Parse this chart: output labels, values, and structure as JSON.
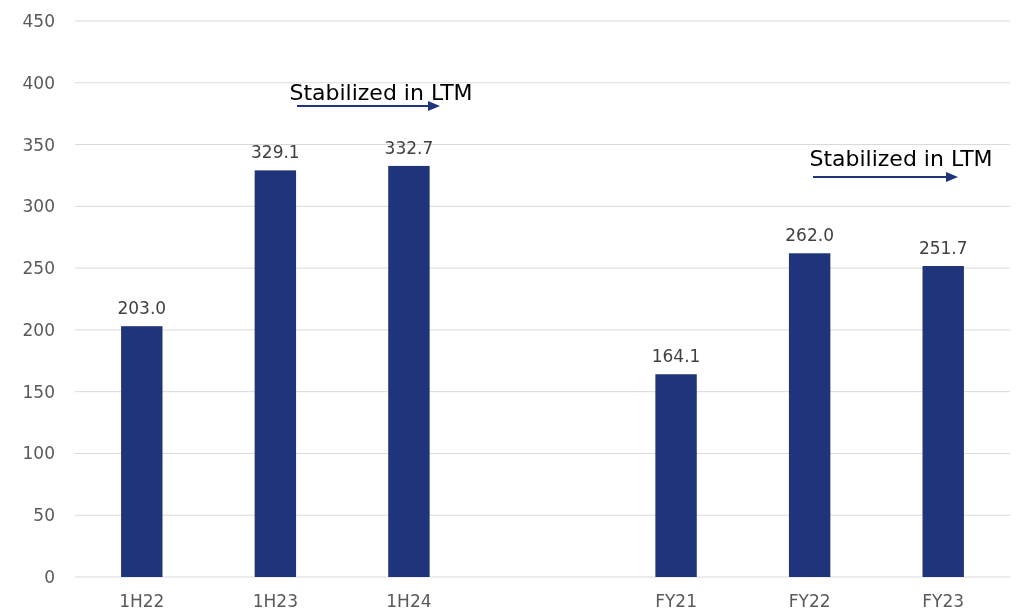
{
  "chart_data": {
    "type": "bar",
    "categories": [
      "1H22",
      "1H23",
      "1H24",
      null,
      "FY21",
      "FY22",
      "FY23"
    ],
    "values": [
      203.0,
      329.1,
      332.7,
      null,
      164.1,
      262.0,
      251.7
    ],
    "value_labels": [
      "203.0",
      "329.1",
      "332.7",
      null,
      "164.1",
      "262.0",
      "251.7"
    ],
    "color": "#1f347a",
    "ylim": [
      0,
      450
    ],
    "yticks": [
      0,
      50,
      100,
      150,
      200,
      250,
      300,
      350,
      400,
      450
    ],
    "grid": "y",
    "annotations": [
      "Stabilized in LTM",
      "Stabilized in LTM"
    ]
  }
}
